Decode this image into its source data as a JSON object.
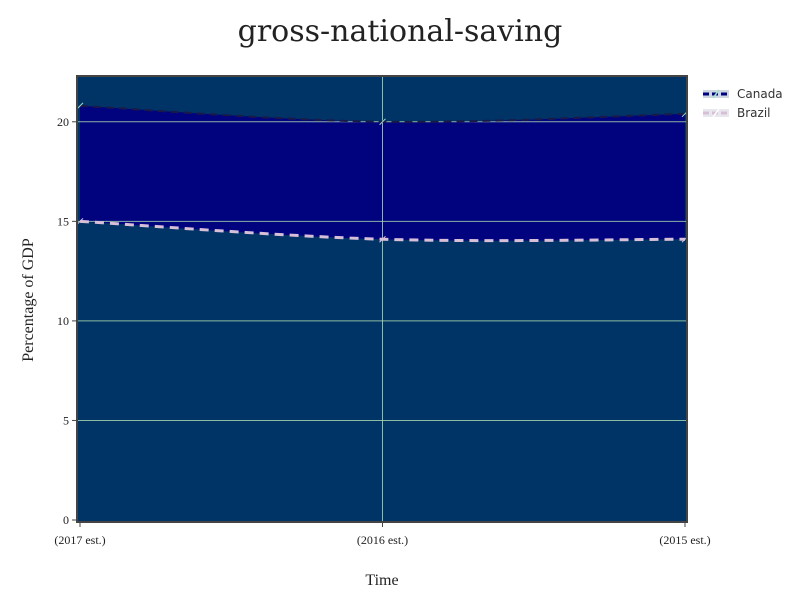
{
  "chart_data": {
    "type": "area",
    "title": "gross-national-saving",
    "xlabel": "Time",
    "ylabel": "Percentage of GDP",
    "categories": [
      "(2017 est.)",
      "(2016 est.)",
      "(2015 est.)"
    ],
    "yticks": [
      0,
      5,
      10,
      15,
      20
    ],
    "ylim": [
      0,
      22.3
    ],
    "grid": true,
    "legend_position": "top-right",
    "series": [
      {
        "name": "Canada",
        "values": [
          20.8,
          20.0,
          20.4
        ],
        "color": "#000080",
        "fill": "#000080"
      },
      {
        "name": "Brazil",
        "values": [
          15.0,
          14.1,
          14.1
        ],
        "color": "#d8bfd8",
        "fill": "#003366"
      }
    ],
    "plot_background": "#003366",
    "grid_color": "#b0e0b0"
  }
}
